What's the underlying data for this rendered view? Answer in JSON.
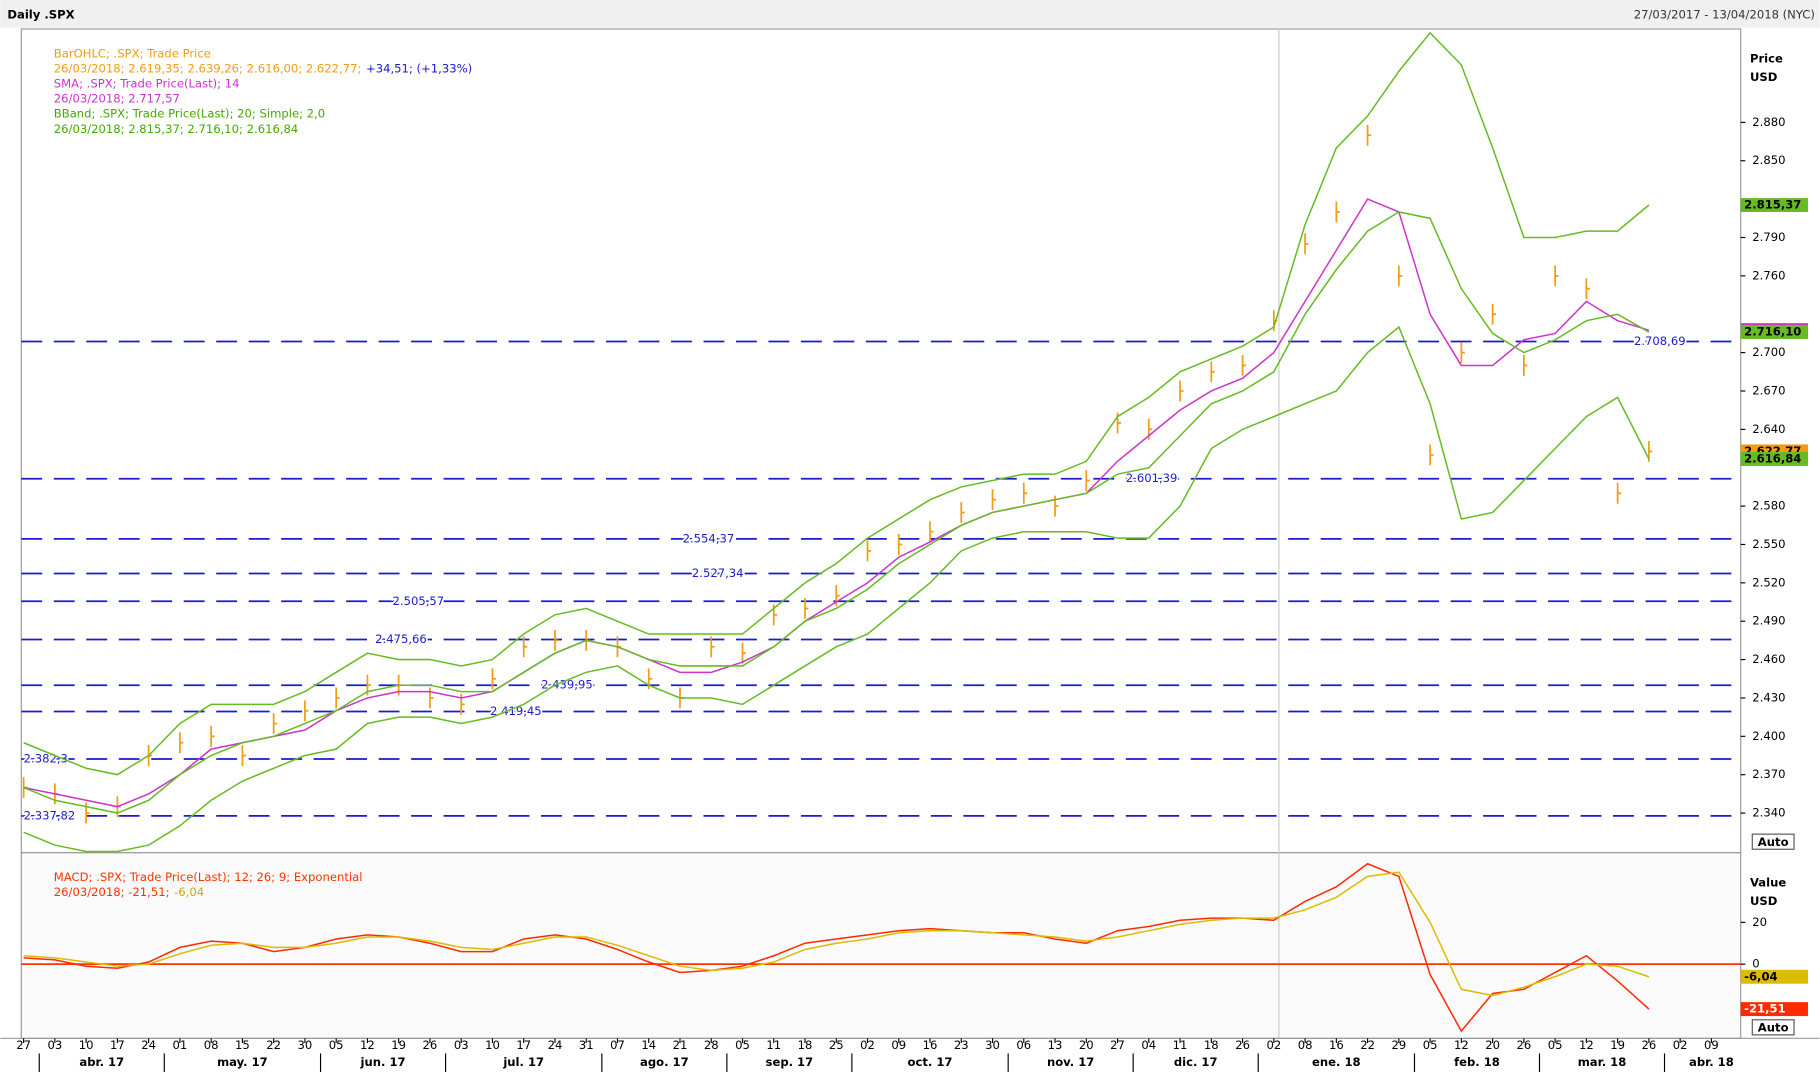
{
  "header": {
    "title": "Daily .SPX",
    "range": "27/03/2017 - 13/04/2018 (NYC)"
  },
  "chart_data": [
    {
      "type": "ohlc-study",
      "categories": [
        "27",
        "03",
        "10",
        "17",
        "24",
        "01",
        "08",
        "15",
        "22",
        "30",
        "05",
        "12",
        "19",
        "26",
        "03",
        "10",
        "17",
        "24",
        "31",
        "07",
        "14",
        "21",
        "28",
        "05",
        "11",
        "18",
        "25",
        "02",
        "09",
        "16",
        "23",
        "30",
        "06",
        "13",
        "20",
        "27",
        "04",
        "11",
        "18",
        "26",
        "02",
        "08",
        "16",
        "22",
        "29",
        "05",
        "12",
        "20",
        "26",
        "05",
        "12",
        "19",
        "26",
        "02",
        "09"
      ],
      "months": [
        "abr. 17",
        "may. 17",
        "jun. 17",
        "jul. 17",
        "ago. 17",
        "sep. 17",
        "oct. 17",
        "nov. 17",
        "dic. 17",
        "ene. 18",
        "feb. 18",
        "mar. 18",
        "abr. 18"
      ],
      "axis_title": [
        "Price",
        "USD"
      ],
      "scale_button": "Auto",
      "ylim": [
        2309,
        2953
      ],
      "yticks": [
        {
          "value": 2340,
          "label": "2.340"
        },
        {
          "value": 2370,
          "label": "2.370"
        },
        {
          "value": 2400,
          "label": "2.400"
        },
        {
          "value": 2430,
          "label": "2.430"
        },
        {
          "value": 2460,
          "label": "2.460"
        },
        {
          "value": 2490,
          "label": "2.490"
        },
        {
          "value": 2520,
          "label": "2.520"
        },
        {
          "value": 2550,
          "label": "2.550"
        },
        {
          "value": 2580,
          "label": "2.580"
        },
        {
          "value": 2640,
          "label": "2.640"
        },
        {
          "value": 2670,
          "label": "2.670"
        },
        {
          "value": 2700,
          "label": "2.700"
        },
        {
          "value": 2760,
          "label": "2.760"
        },
        {
          "value": 2790,
          "label": "2.790"
        },
        {
          "value": 2850,
          "label": "2.850"
        },
        {
          "value": 2880,
          "label": "2.880"
        }
      ],
      "legend": [
        [
          {
            "text": "BarOHLC; .SPX; Trade Price",
            "color": "#f39c12"
          }
        ],
        [
          {
            "text": "26/03/2018; 2.619,35; 2.639,26; 2.616,00; 2.622,77;",
            "color": "#f39c12"
          },
          {
            "text": "+34,51; (+1,33%)",
            "color": "#1a1ad0"
          }
        ],
        [
          {
            "text": "SMA; .SPX; Trade Price(Last); 14",
            "color": "#cc33cc"
          }
        ],
        [
          {
            "text": "26/03/2018; 2.717,57",
            "color": "#cc33cc"
          }
        ],
        [
          {
            "text": "BBand; .SPX; Trade Price(Last); 20; Simple; 2,0",
            "color": "#44aa00"
          }
        ],
        [
          {
            "text": "26/03/2018; 2.815,37; 2.716,10; 2.616,84",
            "color": "#44aa00"
          }
        ]
      ],
      "levels": [
        {
          "value": 2708.69,
          "label": "2.708,69"
        },
        {
          "value": 2601.39,
          "label": "2.601,39"
        },
        {
          "value": 2554.37,
          "label": "2.554,37"
        },
        {
          "value": 2527.34,
          "label": "2.527,34"
        },
        {
          "value": 2505.57,
          "label": "2.505,57"
        },
        {
          "value": 2475.66,
          "label": "2.475,66"
        },
        {
          "value": 2439.95,
          "label": "2.439,95"
        },
        {
          "value": 2419.45,
          "label": "2.419,45"
        },
        {
          "value": 2382.3,
          "label": "2.382,3"
        },
        {
          "value": 2337.82,
          "label": "2.337,82"
        }
      ],
      "level_color": "#1a1ad0",
      "series": [
        {
          "style": "bars",
          "color": "#f39c12",
          "tag": "2.622,77",
          "values": [
            2360,
            2355,
            2340,
            2345,
            2385,
            2395,
            2400,
            2385,
            2410,
            2420,
            2430,
            2440,
            2440,
            2430,
            2425,
            2445,
            2470,
            2475,
            2475,
            2470,
            2445,
            2430,
            2470,
            2465,
            2495,
            2500,
            2510,
            2545,
            2550,
            2560,
            2575,
            2585,
            2590,
            2580,
            2600,
            2645,
            2640,
            2670,
            2685,
            2690,
            2725,
            2785,
            2810,
            2870,
            2760,
            2620,
            2700,
            2730,
            2690,
            2760,
            2750,
            2590,
            2622.77,
            null,
            null
          ]
        },
        {
          "style": "line",
          "color": "#cc33cc",
          "tag": "2.717,57",
          "values": [
            2360,
            2355,
            2350,
            2345,
            2355,
            2370,
            2390,
            2395,
            2400,
            2405,
            2420,
            2430,
            2435,
            2435,
            2430,
            2435,
            2450,
            2465,
            2475,
            2470,
            2460,
            2450,
            2450,
            2458,
            2470,
            2490,
            2505,
            2520,
            2540,
            2552,
            2565,
            2575,
            2580,
            2585,
            2590,
            2615,
            2635,
            2655,
            2670,
            2680,
            2700,
            2740,
            2780,
            2820,
            2810,
            2730,
            2690,
            2690,
            2710,
            2715,
            2740,
            2725,
            2717.57,
            null,
            null
          ]
        },
        {
          "style": "line",
          "color": "#66bb22",
          "tag": "2.815,37",
          "values": [
            2395,
            2385,
            2375,
            2370,
            2385,
            2410,
            2425,
            2425,
            2425,
            2435,
            2450,
            2465,
            2460,
            2460,
            2455,
            2460,
            2480,
            2495,
            2500,
            2490,
            2480,
            2480,
            2480,
            2480,
            2500,
            2520,
            2535,
            2555,
            2570,
            2585,
            2595,
            2600,
            2605,
            2605,
            2615,
            2650,
            2665,
            2685,
            2695,
            2705,
            2720,
            2800,
            2860,
            2885,
            2920,
            2950,
            2925,
            2860,
            2790,
            2790,
            2795,
            2795,
            2815.37,
            null,
            null
          ]
        },
        {
          "style": "line",
          "color": "#66bb22",
          "tag": "2.716,10",
          "values": [
            2360,
            2350,
            2345,
            2340,
            2350,
            2370,
            2385,
            2395,
            2400,
            2410,
            2420,
            2435,
            2440,
            2440,
            2435,
            2435,
            2450,
            2465,
            2475,
            2470,
            2460,
            2455,
            2455,
            2455,
            2470,
            2490,
            2500,
            2515,
            2535,
            2550,
            2565,
            2575,
            2580,
            2585,
            2590,
            2605,
            2610,
            2635,
            2660,
            2670,
            2685,
            2730,
            2765,
            2795,
            2810,
            2805,
            2750,
            2715,
            2700,
            2710,
            2725,
            2730,
            2716.1,
            null,
            null
          ]
        },
        {
          "style": "line",
          "color": "#66bb22",
          "tag": "2.616,84",
          "values": [
            2325,
            2315,
            2310,
            2310,
            2315,
            2330,
            2350,
            2365,
            2375,
            2385,
            2390,
            2410,
            2415,
            2415,
            2410,
            2415,
            2425,
            2440,
            2450,
            2455,
            2440,
            2430,
            2430,
            2425,
            2440,
            2455,
            2470,
            2480,
            2500,
            2520,
            2545,
            2555,
            2560,
            2560,
            2560,
            2555,
            2555,
            2580,
            2625,
            2640,
            2650,
            2660,
            2670,
            2700,
            2720,
            2660,
            2570,
            2575,
            2600,
            2625,
            2650,
            2665,
            2616.84,
            null,
            null
          ]
        }
      ]
    },
    {
      "type": "macd",
      "axis_title": [
        "Value",
        "USD"
      ],
      "scale_button": "Auto",
      "ylim": [
        -35.5,
        53.3
      ],
      "yticks": [
        20,
        0
      ],
      "zero_color": "#ff3300",
      "legend": [
        [
          {
            "text": "MACD; .SPX; Trade Price(Last);  12; 26; 9; Exponential",
            "color": "#ff3300"
          }
        ],
        [
          {
            "text": "26/03/2018; -21,51;",
            "color": "#ff3300"
          },
          {
            "text": "-6,04",
            "color": "#ccaa00"
          }
        ]
      ],
      "series": [
        {
          "style": "line",
          "color": "#ff2a00",
          "tag": "-21,51",
          "values": [
            3,
            2,
            -1,
            -2,
            1,
            8,
            11,
            10,
            6,
            8,
            12,
            14,
            13,
            10,
            6,
            6,
            12,
            14,
            12,
            7,
            1,
            -4,
            -3,
            -1,
            4,
            10,
            12,
            14,
            16,
            17,
            16,
            15,
            15,
            12,
            10,
            16,
            18,
            21,
            22,
            22,
            21,
            30,
            37,
            48,
            42,
            -5,
            -32,
            -14,
            -12,
            -4,
            4,
            -8,
            -21.51,
            null,
            null
          ]
        },
        {
          "style": "line",
          "color": "#ddbb00",
          "tag": "-6,04",
          "values": [
            4,
            3,
            1,
            -1,
            0,
            5,
            9,
            10,
            8,
            8,
            10,
            13,
            13,
            11,
            8,
            7,
            10,
            13,
            13,
            9,
            4,
            -1,
            -3,
            -2,
            1,
            7,
            10,
            12,
            15,
            16,
            16,
            15,
            14,
            13,
            11,
            13,
            16,
            19,
            21,
            22,
            22,
            26,
            32,
            42,
            44,
            20,
            -12,
            -15,
            -11,
            -6,
            0,
            -1,
            -6.04,
            null,
            null
          ]
        }
      ]
    }
  ]
}
